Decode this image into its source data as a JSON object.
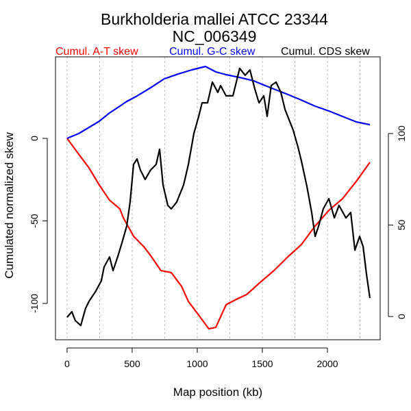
{
  "chart_data": {
    "type": "line",
    "title": "Burkholderia mallei ATCC 23344",
    "subtitle": "NC_006349",
    "xlabel": "Map position (kb)",
    "ylabel": "Cumulated normalized skew",
    "xlim": [
      -89,
      2405
    ],
    "ylim": [
      -122,
      49.4
    ],
    "ylim_right": [
      -12.7,
      141.9
    ],
    "x_ticks": [
      0,
      500,
      1000,
      1500,
      2000
    ],
    "x_tick_labels": [
      "0",
      "500",
      "1000",
      "1500",
      "2000"
    ],
    "y_ticks": [
      0,
      -50,
      -100
    ],
    "y_tick_labels": [
      "0",
      "-50",
      "-100"
    ],
    "y_right_ticks": [
      0,
      50,
      100
    ],
    "y_right_tick_labels": [
      "0",
      "50",
      "100"
    ],
    "grid_x": [
      0,
      250,
      500,
      750,
      1000,
      1250,
      1500,
      1750,
      2000,
      2250
    ],
    "legend_placement": "top",
    "series": [
      {
        "name": "Cumul. A-T skew",
        "color": "#ff0000",
        "axis": "left",
        "x": [
          0,
          89,
          168,
          247,
          326,
          405,
          432,
          511,
          589,
          642,
          721,
          800,
          879,
          932,
          1011,
          1089,
          1142,
          1221,
          1300,
          1379,
          1484,
          1589,
          1695,
          1800,
          1905,
          2011,
          2116,
          2221,
          2326
        ],
        "y": [
          0,
          -9.5,
          -17.8,
          -28.2,
          -37.4,
          -42.7,
          -48.1,
          -59.3,
          -65.6,
          -71,
          -80.1,
          -81.3,
          -89.6,
          -98.8,
          -107.1,
          -115.4,
          -114.5,
          -100.8,
          -97.5,
          -94.6,
          -87.2,
          -80.1,
          -71.8,
          -64.3,
          -53.1,
          -43.6,
          -36.5,
          -26.1,
          -14.5
        ]
      },
      {
        "name": "Cumul. G-C skew",
        "color": "#0000ff",
        "axis": "left",
        "x": [
          0,
          89,
          168,
          247,
          326,
          405,
          458,
          537,
          642,
          747,
          853,
          958,
          1063,
          1142,
          1221,
          1326,
          1432,
          1484,
          1589,
          1695,
          1800,
          1905,
          2011,
          2116,
          2221,
          2326
        ],
        "y": [
          0,
          2.9,
          6.6,
          10.4,
          15.4,
          19.5,
          22.4,
          25.7,
          30.7,
          36.1,
          39,
          41.5,
          43.6,
          40.3,
          38.6,
          36.9,
          34.9,
          33.2,
          29.9,
          26.6,
          23.2,
          19.5,
          16.6,
          13.3,
          10,
          8.3
        ]
      },
      {
        "name": "Cumul. CDS skew",
        "color": "#000000",
        "axis": "right",
        "x": [
          0,
          37,
          63,
          105,
          142,
          168,
          221,
          263,
          284,
          326,
          353,
          389,
          421,
          458,
          484,
          511,
          537,
          563,
          600,
          642,
          684,
          711,
          737,
          774,
          800,
          842,
          895,
          932,
          974,
          1011,
          1037,
          1079,
          1116,
          1158,
          1179,
          1221,
          1274,
          1326,
          1368,
          1405,
          1442,
          1474,
          1511,
          1537,
          1568,
          1605,
          1642,
          1674,
          1705,
          1737,
          1774,
          1800,
          1842,
          1879,
          1905,
          1932,
          1968,
          2011,
          2053,
          2089,
          2142,
          2179,
          2211,
          2247,
          2274,
          2300,
          2326
        ],
        "y": [
          -0.4,
          2.6,
          -2.2,
          -4.9,
          4.5,
          8.2,
          13.9,
          19.5,
          27,
          32.6,
          25.1,
          32.6,
          40.1,
          49.4,
          62.5,
          83.1,
          86.1,
          80.1,
          74.9,
          80.1,
          83.1,
          91.4,
          71.9,
          60.7,
          58.8,
          62.5,
          71.9,
          83.1,
          100,
          109.4,
          116.8,
          116.8,
          128.1,
          122.5,
          126.2,
          120.6,
          120.6,
          135.6,
          131.8,
          134.8,
          124.3,
          116.8,
          120.6,
          109.4,
          126.2,
          128.1,
          122.5,
          113.1,
          107.5,
          101.9,
          92.5,
          85,
          71.2,
          56.9,
          43.8,
          49.4,
          58.8,
          64.4,
          53.9,
          60.7,
          53.9,
          56.9,
          36.3,
          43.8,
          38.2,
          23.2,
          10.1
        ]
      }
    ]
  }
}
